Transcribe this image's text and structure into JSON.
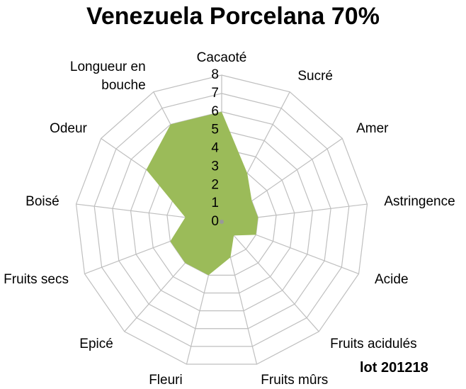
{
  "chart_data": {
    "type": "radar",
    "title": "Venezuela Porcelana 70%",
    "categories": [
      "Cacaoté",
      "Sucré",
      "Amer",
      "Astringence",
      "Acide",
      "Fruits acidulés",
      "Fruits mûrs",
      "Fleuri",
      "Epicé",
      "Fruits secs",
      "Boisé",
      "Odeur",
      "Longueur en bouche"
    ],
    "series": [
      {
        "name": "Venezuela Porcelana 70%",
        "color": "#9bbb59",
        "values": [
          6,
          3,
          2,
          2,
          2,
          1,
          2,
          3,
          3,
          3,
          2,
          5,
          6
        ]
      }
    ],
    "ylim": [
      0,
      8
    ],
    "yticks": [
      0,
      1,
      2,
      3,
      4,
      5,
      6,
      7,
      8
    ],
    "annotation": "lot 201218"
  }
}
